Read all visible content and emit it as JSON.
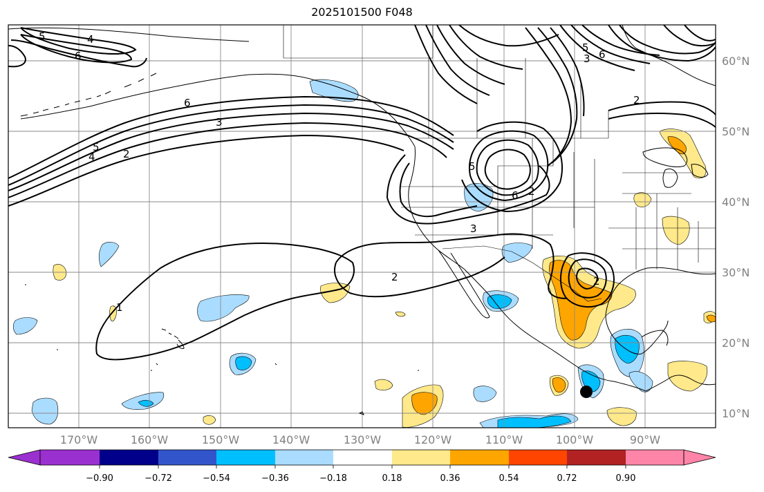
{
  "title": "2025101500 F048",
  "longitude_labels": [
    "170°W",
    "160°W",
    "150°W",
    "140°W",
    "130°W",
    "120°W",
    "110°W",
    "100°W",
    "90°W"
  ],
  "latitude_labels": [
    "10°N",
    "20°N",
    "30°N",
    "40°N",
    "50°N",
    "60°N"
  ],
  "colorbar": {
    "tick_labels": [
      "−0.90",
      "−0.72",
      "−0.54",
      "−0.36",
      "−0.18",
      "0.18",
      "0.36",
      "0.54",
      "0.72",
      "0.90"
    ],
    "colors": [
      "#9b30d0",
      "#00008b",
      "#3355cc",
      "#00bfff",
      "#aadcff",
      "#ffffff",
      "#ffe98a",
      "#ffa500",
      "#ff4500",
      "#b22222",
      "#ff85a8"
    ]
  },
  "contour_labels": [
    "5",
    "4",
    "6",
    "6",
    "3",
    "5",
    "4",
    "2",
    "5",
    "6",
    "2",
    "3",
    "2",
    "1",
    "5",
    "6",
    "3",
    "2",
    "2"
  ],
  "fill_colors": {
    "light_blue": "#aadcff",
    "blue": "#00bfff",
    "light_yellow": "#ffe98a",
    "orange": "#ffa500"
  }
}
